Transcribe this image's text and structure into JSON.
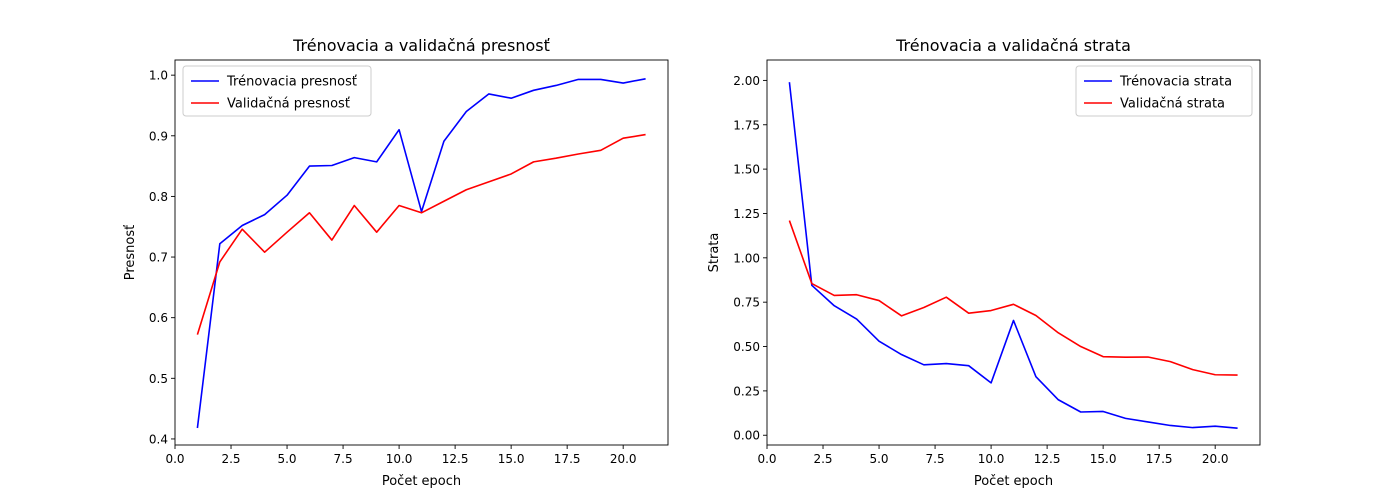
{
  "chart_data": [
    {
      "type": "line",
      "title": "Trénovacia a validačná presnosť",
      "xlabel": "Počet epoch",
      "ylabel": "Presnosť",
      "xlim": [
        0.0,
        22.0
      ],
      "ylim": [
        0.39,
        1.025
      ],
      "xticks": [
        0.0,
        2.5,
        5.0,
        7.5,
        10.0,
        12.5,
        15.0,
        17.5,
        20.0
      ],
      "xtick_labels": [
        "0.0",
        "2.5",
        "5.0",
        "7.5",
        "10.0",
        "12.5",
        "15.0",
        "17.5",
        "20.0"
      ],
      "yticks": [
        0.4,
        0.5,
        0.6,
        0.7,
        0.8,
        0.9,
        1.0
      ],
      "ytick_labels": [
        "0.4",
        "0.5",
        "0.6",
        "0.7",
        "0.8",
        "0.9",
        "1.0"
      ],
      "legend_position": "upper-left",
      "grid": false,
      "x": [
        1,
        2,
        3,
        4,
        5,
        6,
        7,
        8,
        9,
        10,
        11,
        12,
        13,
        14,
        15,
        16,
        17,
        18,
        19,
        20,
        21
      ],
      "series": [
        {
          "name": "Trénovacia presnosť",
          "color": "#0000ff",
          "values": [
            0.418,
            0.722,
            0.752,
            0.77,
            0.802,
            0.85,
            0.851,
            0.864,
            0.857,
            0.91,
            0.775,
            0.891,
            0.94,
            0.969,
            0.962,
            0.975,
            0.983,
            0.993,
            0.993,
            0.987,
            0.994
          ]
        },
        {
          "name": "Validačná presnosť",
          "color": "#ff0000",
          "values": [
            0.572,
            0.692,
            0.746,
            0.708,
            0.741,
            0.773,
            0.728,
            0.785,
            0.741,
            0.785,
            0.773,
            0.792,
            0.811,
            0.824,
            0.837,
            0.857,
            0.863,
            0.87,
            0.876,
            0.896,
            0.902
          ]
        }
      ]
    },
    {
      "type": "line",
      "title": "Trénovacia a validačná strata",
      "xlabel": "Počet epoch",
      "ylabel": "Strata",
      "xlim": [
        0.0,
        22.0
      ],
      "ylim": [
        -0.055,
        2.115
      ],
      "xticks": [
        0.0,
        2.5,
        5.0,
        7.5,
        10.0,
        12.5,
        15.0,
        17.5,
        20.0
      ],
      "xtick_labels": [
        "0.0",
        "2.5",
        "5.0",
        "7.5",
        "10.0",
        "12.5",
        "15.0",
        "17.5",
        "20.0"
      ],
      "yticks": [
        0.0,
        0.25,
        0.5,
        0.75,
        1.0,
        1.25,
        1.5,
        1.75,
        2.0
      ],
      "ytick_labels": [
        "0.00",
        "0.25",
        "0.50",
        "0.75",
        "1.00",
        "1.25",
        "1.50",
        "1.75",
        "2.00"
      ],
      "legend_position": "upper-right",
      "grid": false,
      "x": [
        1,
        2,
        3,
        4,
        5,
        6,
        7,
        8,
        9,
        10,
        11,
        12,
        13,
        14,
        15,
        16,
        17,
        18,
        19,
        20,
        21
      ],
      "series": [
        {
          "name": "Trénovacia strata",
          "color": "#0000ff",
          "values": [
            1.99,
            0.845,
            0.73,
            0.655,
            0.53,
            0.455,
            0.397,
            0.404,
            0.392,
            0.295,
            0.647,
            0.33,
            0.2,
            0.131,
            0.134,
            0.095,
            0.075,
            0.055,
            0.043,
            0.051,
            0.04
          ]
        },
        {
          "name": "Validačná strata",
          "color": "#ff0000",
          "values": [
            1.21,
            0.855,
            0.788,
            0.792,
            0.759,
            0.673,
            0.72,
            0.778,
            0.688,
            0.703,
            0.738,
            0.675,
            0.577,
            0.5,
            0.443,
            0.44,
            0.441,
            0.415,
            0.37,
            0.341,
            0.339
          ]
        }
      ]
    }
  ]
}
